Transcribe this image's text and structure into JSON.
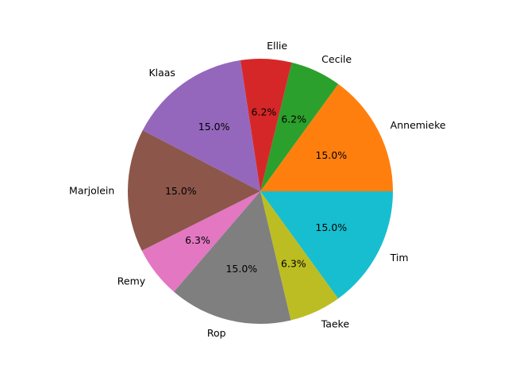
{
  "chart_data": {
    "type": "pie",
    "title": "",
    "start_angle_deg": 0,
    "direction": "counterclockwise",
    "slices": [
      {
        "label": "Annemieke",
        "value": 15.0,
        "pct_label": "15.0%",
        "color": "#ff7f0e"
      },
      {
        "label": "Cecile",
        "value": 6.2,
        "pct_label": "6.2%",
        "color": "#2ca02c"
      },
      {
        "label": "Ellie",
        "value": 6.2,
        "pct_label": "6.2%",
        "color": "#d62728"
      },
      {
        "label": "Klaas",
        "value": 15.0,
        "pct_label": "15.0%",
        "color": "#9467bd"
      },
      {
        "label": "Marjolein",
        "value": 15.0,
        "pct_label": "15.0%",
        "color": "#8c564b"
      },
      {
        "label": "Remy",
        "value": 6.3,
        "pct_label": "6.3%",
        "color": "#e377c2"
      },
      {
        "label": "Rop",
        "value": 15.0,
        "pct_label": "15.0%",
        "color": "#7f7f7f"
      },
      {
        "label": "Taeke",
        "value": 6.3,
        "pct_label": "6.3%",
        "color": "#bcbd22"
      },
      {
        "label": "Tim",
        "value": 15.0,
        "pct_label": "15.0%",
        "color": "#17becf"
      }
    ]
  }
}
